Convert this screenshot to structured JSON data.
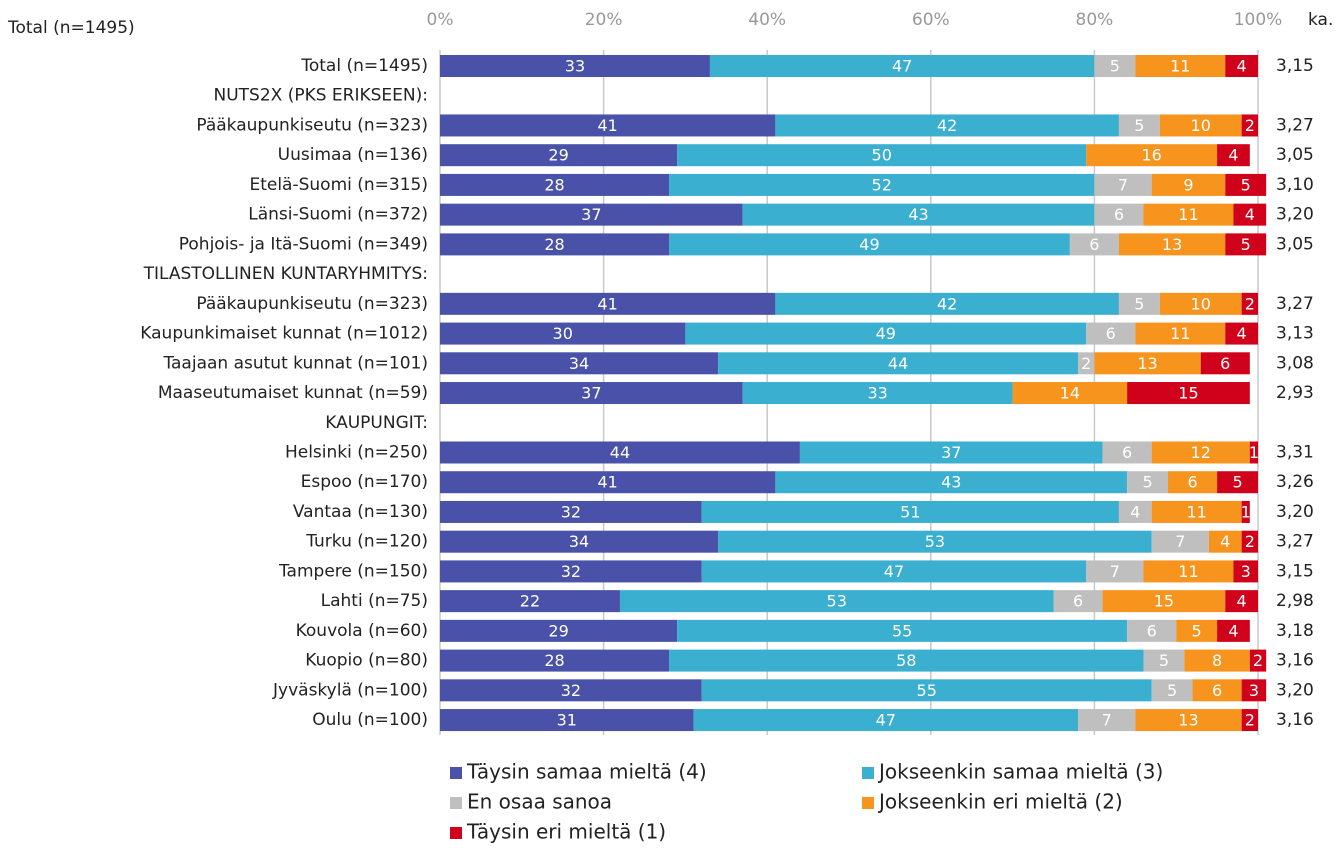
{
  "chart_data": {
    "type": "stacked-bar",
    "orientation": "horizontal",
    "title": "Total (n=1495)",
    "categories": [
      "Total (n=1495)",
      "NUTS2X (PKS ERIKSEEN):",
      "Pääkaupunkiseutu (n=323)",
      "Uusimaa (n=136)",
      "Etelä-Suomi (n=315)",
      "Länsi-Suomi (n=372)",
      "Pohjois- ja Itä-Suomi (n=349)",
      "TILASTOLLINEN KUNTARYHMITYS:",
      "Pääkaupunkiseutu (n=323)",
      "Kaupunkimaiset kunnat (n=1012)",
      "Taajaan asutut kunnat (n=101)",
      "Maaseutumaiset kunnat (n=59)",
      "KAUPUNGIT:",
      "Helsinki (n=250)",
      "Espoo (n=170)",
      "Vantaa (n=130)",
      "Turku (n=120)",
      "Tampere (n=150)",
      "Lahti (n=75)",
      "Kouvola (n=60)",
      "Kuopio (n=80)",
      "Jyväskylä (n=100)",
      "Oulu (n=100)"
    ],
    "series": [
      {
        "name": "Täysin samaa mieltä (4)",
        "color": "#4a51a8",
        "values": [
          33,
          null,
          41,
          29,
          28,
          37,
          28,
          null,
          41,
          30,
          34,
          37,
          null,
          44,
          41,
          32,
          34,
          32,
          22,
          29,
          28,
          32,
          31
        ]
      },
      {
        "name": "Jokseenkin samaa mieltä (3)",
        "color": "#3aafcf",
        "values": [
          47,
          null,
          42,
          50,
          52,
          43,
          49,
          null,
          42,
          49,
          44,
          33,
          null,
          37,
          43,
          51,
          53,
          47,
          53,
          55,
          58,
          55,
          47
        ]
      },
      {
        "name": "En osaa sanoa",
        "color": "#bfbfbf",
        "values": [
          5,
          null,
          5,
          null,
          7,
          6,
          6,
          null,
          5,
          6,
          2,
          null,
          null,
          6,
          5,
          4,
          7,
          7,
          6,
          6,
          5,
          5,
          7
        ]
      },
      {
        "name": "Jokseenkin eri mieltä (2)",
        "color": "#f7941d",
        "values": [
          11,
          null,
          10,
          16,
          9,
          11,
          13,
          null,
          10,
          11,
          13,
          14,
          null,
          12,
          6,
          11,
          4,
          11,
          15,
          5,
          8,
          6,
          13
        ]
      },
      {
        "name": "Täysin eri mieltä (1)",
        "color": "#d0021b",
        "values": [
          4,
          null,
          2,
          4,
          5,
          4,
          5,
          null,
          2,
          4,
          6,
          15,
          null,
          1,
          5,
          1,
          2,
          3,
          4,
          4,
          2,
          3,
          2
        ]
      }
    ],
    "averages": {
      "name": "ka.",
      "values": [
        3.15,
        null,
        3.27,
        3.05,
        3.1,
        3.2,
        3.05,
        null,
        3.27,
        3.13,
        3.08,
        2.93,
        null,
        3.31,
        3.26,
        3.2,
        3.27,
        3.15,
        2.98,
        3.18,
        3.16,
        3.2,
        3.16
      ],
      "value_labels": [
        "3,15",
        null,
        "3,27",
        "3,05",
        "3,10",
        "3,20",
        "3,05",
        null,
        "3,27",
        "3,13",
        "3,08",
        "2,93",
        null,
        "3,31",
        "3,26",
        "3,20",
        "3,27",
        "3,15",
        "2,98",
        "3,18",
        "3,16",
        "3,20",
        "3,16"
      ]
    },
    "xlim": [
      0,
      100
    ],
    "xticks": [
      {
        "value": 0,
        "label": "0%"
      },
      {
        "value": 20,
        "label": "20%"
      },
      {
        "value": 40,
        "label": "40%"
      },
      {
        "value": 60,
        "label": "60%"
      },
      {
        "value": 80,
        "label": "80%"
      },
      {
        "value": 100,
        "label": "100%"
      }
    ],
    "grid": true,
    "legend": "bottom"
  }
}
